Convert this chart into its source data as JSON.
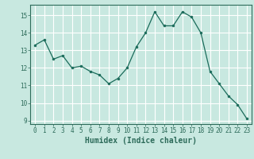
{
  "x": [
    0,
    1,
    2,
    3,
    4,
    5,
    6,
    7,
    8,
    9,
    10,
    11,
    12,
    13,
    14,
    15,
    16,
    17,
    18,
    19,
    20,
    21,
    22,
    23
  ],
  "y": [
    13.3,
    13.6,
    12.5,
    12.7,
    12.0,
    12.1,
    11.8,
    11.6,
    11.1,
    11.4,
    12.0,
    13.2,
    14.0,
    15.2,
    14.4,
    14.4,
    15.2,
    14.9,
    14.0,
    11.8,
    11.1,
    10.4,
    9.9,
    9.1
  ],
  "line_color": "#1a6b5a",
  "marker_color": "#1a6b5a",
  "bg_color": "#c8e8e0",
  "grid_color": "#ffffff",
  "axis_color": "#2d6b5a",
  "xlabel": "Humidex (Indice chaleur)",
  "ylim": [
    8.8,
    15.6
  ],
  "xlim": [
    -0.5,
    23.5
  ],
  "yticks": [
    9,
    10,
    11,
    12,
    13,
    14,
    15
  ],
  "xticks": [
    0,
    1,
    2,
    3,
    4,
    5,
    6,
    7,
    8,
    9,
    10,
    11,
    12,
    13,
    14,
    15,
    16,
    17,
    18,
    19,
    20,
    21,
    22,
    23
  ],
  "tick_fontsize": 5.5,
  "label_fontsize": 7.0
}
